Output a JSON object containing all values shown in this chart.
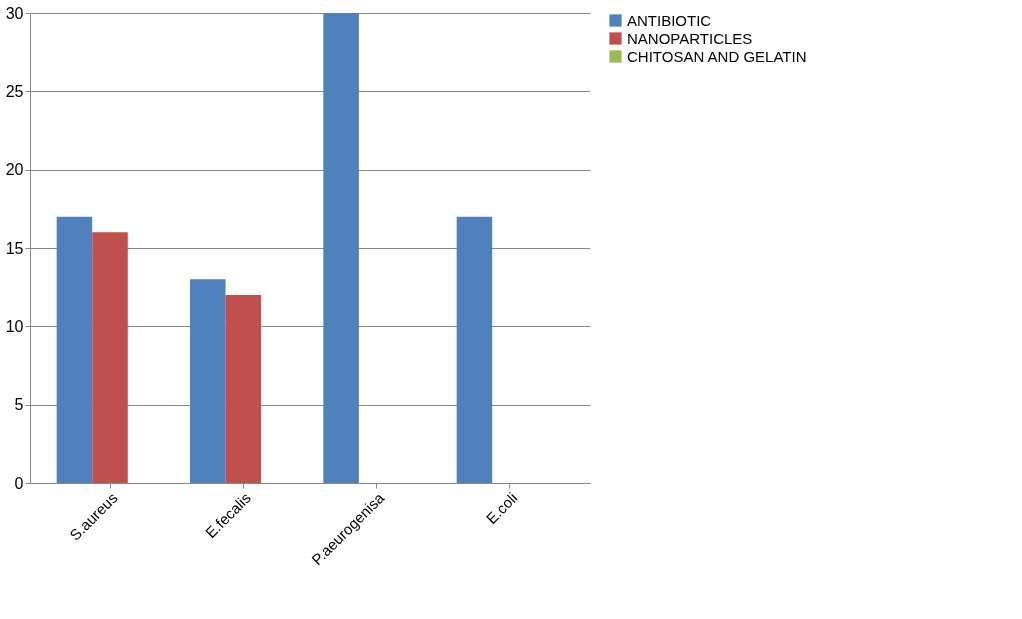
{
  "chart_data": {
    "type": "bar",
    "categories": [
      "S.aureus",
      "E.fecalis",
      "P.aeurogenisa",
      "E.coli"
    ],
    "series": [
      {
        "name": "ANTIBIOTIC",
        "color": "#4f81bd",
        "values": [
          17,
          13,
          30,
          17
        ]
      },
      {
        "name": "NANOPARTICLES",
        "color": "#c0504d",
        "values": [
          16,
          12,
          0,
          0
        ]
      },
      {
        "name": "CHITOSAN AND GELATIN",
        "color": "#9bbb59",
        "values": [
          0,
          0,
          0,
          0
        ]
      }
    ],
    "ylim": [
      0,
      30
    ],
    "yticks": [
      0,
      5,
      10,
      15,
      20,
      25,
      30
    ],
    "grid": "y",
    "legend": "right"
  }
}
